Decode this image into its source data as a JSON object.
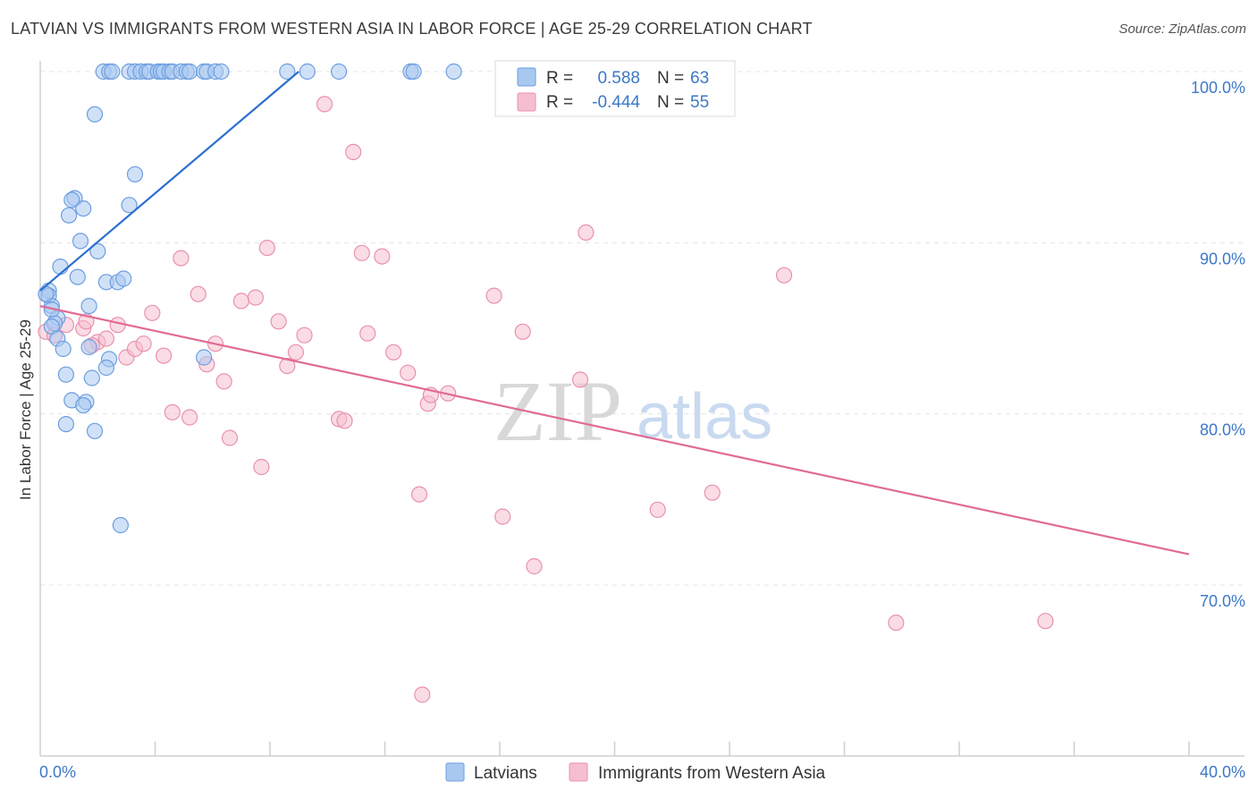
{
  "title": "LATVIAN VS IMMIGRANTS FROM WESTERN ASIA IN LABOR FORCE | AGE 25-29 CORRELATION CHART",
  "source": "Source: ZipAtlas.com",
  "watermark": {
    "zip": "ZIP",
    "atlas": "atlas"
  },
  "colors": {
    "latvian_fill": "#a9c8f0",
    "latvian_stroke": "#6c9ee0",
    "latvian_line": "#2a6fd0",
    "western_fill": "#f6bfd0",
    "western_stroke": "#e991ad",
    "western_line": "#e06b94",
    "tick_label": "#3d78c7",
    "grid": "#e4e4e4"
  },
  "legend_top": {
    "rows": [
      {
        "r_label": "R =",
        "r_value": "0.588",
        "n_label": "N =",
        "n_value": "63"
      },
      {
        "r_label": "R =",
        "r_value": "-0.444",
        "n_label": "N =",
        "n_value": "55"
      }
    ]
  },
  "legend_bottom": {
    "items": [
      "Latvians",
      "Immigrants from Western Asia"
    ]
  },
  "chart_data": {
    "type": "scatter",
    "title": "LATVIAN VS IMMIGRANTS FROM WESTERN ASIA IN LABOR FORCE | AGE 25-29 CORRELATION CHART",
    "xlabel": "",
    "ylabel": "In Labor Force | Age 25-29",
    "xlim": [
      0,
      40
    ],
    "ylim": [
      62,
      101
    ],
    "x_tick_labels": [
      "0.0%",
      "40.0%"
    ],
    "y_ticks": [
      70,
      80,
      90,
      100
    ],
    "y_tick_labels": [
      "70.0%",
      "80.0%",
      "90.0%",
      "100.0%"
    ],
    "grid": true,
    "legend_position": "top-center",
    "series": [
      {
        "name": "Latvians",
        "r": 0.588,
        "n": 63,
        "trend": [
          [
            0.0,
            87.2
          ],
          [
            9.0,
            100.0
          ]
        ],
        "points": [
          [
            2.2,
            100
          ],
          [
            2.4,
            100
          ],
          [
            2.5,
            100
          ],
          [
            3.1,
            100
          ],
          [
            3.3,
            100
          ],
          [
            3.5,
            100
          ],
          [
            3.7,
            100
          ],
          [
            3.8,
            100
          ],
          [
            4.1,
            100
          ],
          [
            4.2,
            100
          ],
          [
            4.3,
            100
          ],
          [
            4.5,
            100
          ],
          [
            4.6,
            100
          ],
          [
            4.9,
            100
          ],
          [
            5.1,
            100
          ],
          [
            5.2,
            100
          ],
          [
            5.7,
            100
          ],
          [
            5.8,
            100
          ],
          [
            6.1,
            100
          ],
          [
            6.3,
            100
          ],
          [
            8.6,
            100
          ],
          [
            9.3,
            100
          ],
          [
            10.4,
            100
          ],
          [
            12.9,
            100
          ],
          [
            13.0,
            100
          ],
          [
            14.4,
            100
          ],
          [
            1.9,
            97.5
          ],
          [
            3.3,
            94.0
          ],
          [
            1.2,
            92.6
          ],
          [
            1.1,
            92.5
          ],
          [
            1.5,
            92.0
          ],
          [
            1.0,
            91.6
          ],
          [
            3.1,
            92.2
          ],
          [
            1.4,
            90.1
          ],
          [
            2.0,
            89.5
          ],
          [
            0.7,
            88.6
          ],
          [
            1.3,
            88.0
          ],
          [
            2.3,
            87.7
          ],
          [
            2.7,
            87.7
          ],
          [
            2.9,
            87.9
          ],
          [
            0.3,
            87.2
          ],
          [
            0.3,
            86.9
          ],
          [
            0.4,
            86.3
          ],
          [
            1.7,
            86.3
          ],
          [
            0.6,
            85.6
          ],
          [
            0.5,
            85.3
          ],
          [
            0.4,
            85.1
          ],
          [
            0.6,
            84.4
          ],
          [
            0.8,
            83.8
          ],
          [
            1.7,
            83.9
          ],
          [
            2.4,
            83.2
          ],
          [
            5.7,
            83.3
          ],
          [
            2.3,
            82.7
          ],
          [
            0.9,
            82.3
          ],
          [
            1.8,
            82.1
          ],
          [
            1.1,
            80.8
          ],
          [
            1.6,
            80.7
          ],
          [
            1.5,
            80.5
          ],
          [
            0.9,
            79.4
          ],
          [
            1.9,
            79.0
          ],
          [
            2.8,
            73.5
          ],
          [
            0.4,
            86.1
          ],
          [
            0.2,
            87.0
          ]
        ]
      },
      {
        "name": "Immigrants from Western Asia",
        "r": -0.444,
        "n": 55,
        "trend": [
          [
            0.0,
            86.3
          ],
          [
            40.0,
            71.8
          ]
        ],
        "points": [
          [
            0.2,
            84.8
          ],
          [
            0.5,
            84.6
          ],
          [
            0.9,
            85.2
          ],
          [
            1.5,
            85.0
          ],
          [
            2.0,
            84.2
          ],
          [
            2.3,
            84.4
          ],
          [
            2.7,
            85.2
          ],
          [
            3.0,
            83.3
          ],
          [
            3.3,
            83.8
          ],
          [
            3.6,
            84.1
          ],
          [
            3.9,
            85.9
          ],
          [
            4.3,
            83.4
          ],
          [
            4.6,
            80.1
          ],
          [
            4.9,
            89.1
          ],
          [
            5.2,
            79.8
          ],
          [
            5.5,
            87.0
          ],
          [
            5.8,
            82.9
          ],
          [
            6.1,
            84.1
          ],
          [
            6.4,
            81.9
          ],
          [
            6.6,
            78.6
          ],
          [
            7.0,
            86.6
          ],
          [
            7.5,
            86.8
          ],
          [
            7.7,
            76.9
          ],
          [
            7.9,
            89.7
          ],
          [
            8.3,
            85.4
          ],
          [
            8.6,
            82.8
          ],
          [
            8.9,
            83.6
          ],
          [
            9.2,
            84.6
          ],
          [
            9.9,
            98.1
          ],
          [
            10.4,
            79.7
          ],
          [
            10.6,
            79.6
          ],
          [
            10.9,
            95.3
          ],
          [
            11.2,
            89.4
          ],
          [
            11.4,
            84.7
          ],
          [
            11.9,
            89.2
          ],
          [
            12.3,
            83.6
          ],
          [
            12.8,
            82.4
          ],
          [
            13.2,
            75.3
          ],
          [
            13.5,
            80.6
          ],
          [
            13.6,
            81.1
          ],
          [
            14.2,
            81.2
          ],
          [
            15.8,
            86.9
          ],
          [
            16.1,
            74.0
          ],
          [
            16.8,
            84.8
          ],
          [
            17.2,
            71.1
          ],
          [
            18.8,
            82.0
          ],
          [
            19.0,
            90.6
          ],
          [
            21.5,
            74.4
          ],
          [
            23.4,
            75.4
          ],
          [
            25.9,
            88.1
          ],
          [
            29.8,
            67.8
          ],
          [
            35.0,
            67.9
          ],
          [
            13.3,
            63.6
          ],
          [
            1.6,
            85.4
          ],
          [
            1.8,
            84.0
          ]
        ]
      }
    ]
  }
}
